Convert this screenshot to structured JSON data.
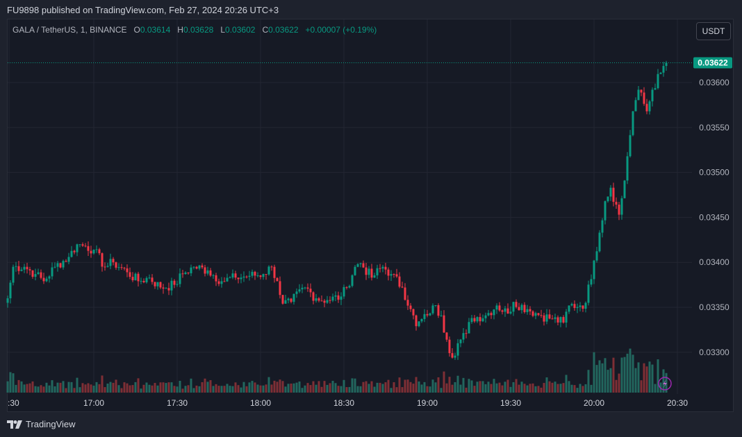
{
  "header": {
    "published": "FU9898 published on TradingView.com, Feb 27, 2024 20:26 UTC+3"
  },
  "legend": {
    "symbol": "GALA / TetherUS, 1, BINANCE",
    "o_label": "O",
    "o": "0.03614",
    "h_label": "H",
    "h": "0.03628",
    "l_label": "L",
    "l": "0.03602",
    "c_label": "C",
    "c": "0.03622",
    "change": "+0.00007 (+0.19%)"
  },
  "currency_button": "USDT",
  "footer": {
    "brand": "TradingView"
  },
  "colors": {
    "up": "#089981",
    "down": "#f23645",
    "up_volume": "#22675e",
    "down_volume": "#7e2f35",
    "background": "#161a25"
  },
  "chart_data": {
    "type": "candlestick",
    "interval": "1 minute",
    "last_price": "0.03622",
    "y_ticks": [
      "0.03600",
      "0.03550",
      "0.03500",
      "0.03450",
      "0.03400",
      "0.03350",
      "0.03300"
    ],
    "x_ticks": [
      ":30",
      "17:00",
      "17:30",
      "18:00",
      "18:30",
      "19:00",
      "19:30",
      "20:00",
      "20:30"
    ],
    "close_path": [
      [
        "16:29",
        0.0336
      ],
      [
        "16:31",
        0.03395
      ],
      [
        "16:35",
        0.03395
      ],
      [
        "16:39",
        0.03387
      ],
      [
        "16:42",
        0.03379
      ],
      [
        "16:46",
        0.03395
      ],
      [
        "16:51",
        0.03406
      ],
      [
        "16:54",
        0.0342
      ],
      [
        "16:57",
        0.03418
      ],
      [
        "17:00",
        0.03414
      ],
      [
        "17:04",
        0.03395
      ],
      [
        "17:07",
        0.034
      ],
      [
        "17:12",
        0.03389
      ],
      [
        "17:16",
        0.03379
      ],
      [
        "17:20",
        0.03383
      ],
      [
        "17:24",
        0.03372
      ],
      [
        "17:29",
        0.03375
      ],
      [
        "17:32",
        0.03387
      ],
      [
        "17:36",
        0.03395
      ],
      [
        "17:41",
        0.03391
      ],
      [
        "17:46",
        0.03379
      ],
      [
        "17:51",
        0.03383
      ],
      [
        "17:56",
        0.03385
      ],
      [
        "18:01",
        0.03387
      ],
      [
        "18:04",
        0.03395
      ],
      [
        "18:06",
        0.03379
      ],
      [
        "18:08",
        0.03354
      ],
      [
        "18:11",
        0.03356
      ],
      [
        "18:16",
        0.03372
      ],
      [
        "18:20",
        0.0336
      ],
      [
        "18:24",
        0.03358
      ],
      [
        "18:29",
        0.03362
      ],
      [
        "18:31",
        0.03372
      ],
      [
        "18:34",
        0.03395
      ],
      [
        "18:36",
        0.03399
      ],
      [
        "18:40",
        0.03383
      ],
      [
        "18:44",
        0.03395
      ],
      [
        "18:47",
        0.03387
      ],
      [
        "18:51",
        0.03372
      ],
      [
        "18:54",
        0.03348
      ],
      [
        "18:56",
        0.03329
      ],
      [
        "19:00",
        0.03341
      ],
      [
        "19:02",
        0.03352
      ],
      [
        "19:05",
        0.03341
      ],
      [
        "19:07",
        0.03314
      ],
      [
        "19:09",
        0.03294
      ],
      [
        "19:11",
        0.0331
      ],
      [
        "19:14",
        0.03321
      ],
      [
        "19:16",
        0.03338
      ],
      [
        "19:21",
        0.03341
      ],
      [
        "19:25",
        0.03352
      ],
      [
        "19:29",
        0.03343
      ],
      [
        "19:31",
        0.03356
      ],
      [
        "19:36",
        0.03348
      ],
      [
        "19:41",
        0.03341
      ],
      [
        "19:45",
        0.03337
      ],
      [
        "19:49",
        0.03333
      ],
      [
        "19:51",
        0.03352
      ],
      [
        "19:55",
        0.03352
      ],
      [
        "19:57",
        0.03355
      ],
      [
        "20:00",
        0.03402
      ],
      [
        "20:02",
        0.03433
      ],
      [
        "20:04",
        0.03468
      ],
      [
        "20:06",
        0.03483
      ],
      [
        "20:09",
        0.03453
      ],
      [
        "20:11",
        0.03491
      ],
      [
        "20:12",
        0.03518
      ],
      [
        "20:14",
        0.03568
      ],
      [
        "20:16",
        0.03592
      ],
      [
        "20:19",
        0.03568
      ],
      [
        "20:21",
        0.03592
      ],
      [
        "20:24",
        0.03611
      ],
      [
        "20:26",
        0.03622
      ]
    ]
  }
}
